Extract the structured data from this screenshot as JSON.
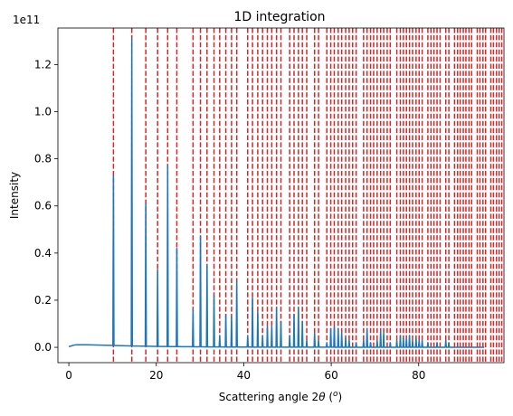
{
  "chart_data": {
    "type": "line",
    "title": "1D integration",
    "xlabel_prefix": "Scattering angle 2",
    "xlabel_theta": "θ",
    "xlabel_unit_open": " (",
    "xlabel_unit_deg": "o",
    "xlabel_unit_close": ")",
    "ylabel": "Intensity",
    "y_offset_text": "1e11",
    "xlim": [
      -2.5,
      99.5
    ],
    "ylim": [
      -0.065,
      1.355
    ],
    "x_ticks": [
      0,
      20,
      40,
      60,
      80
    ],
    "y_ticks": [
      0.0,
      0.2,
      0.4,
      0.6,
      0.8,
      1.0,
      1.2
    ],
    "y_tick_labels": [
      "0.0",
      "0.2",
      "0.4",
      "0.6",
      "0.8",
      "1.0",
      "1.2"
    ],
    "grid": false,
    "line_color": "#1f77b4",
    "reference_line_color": "#d62728",
    "reference_lines_x": [
      10.2,
      14.4,
      17.6,
      20.3,
      22.6,
      24.7,
      28.4,
      30.1,
      31.6,
      33.2,
      34.5,
      35.9,
      37.2,
      38.4,
      40.9,
      42.0,
      43.2,
      44.3,
      45.4,
      46.4,
      47.5,
      48.5,
      50.5,
      51.5,
      52.5,
      53.4,
      54.4,
      56.2,
      57.1,
      59.0,
      59.9,
      60.7,
      61.6,
      62.4,
      63.3,
      64.1,
      64.9,
      65.7,
      67.4,
      68.2,
      69.0,
      69.7,
      70.5,
      71.3,
      72.0,
      72.8,
      73.5,
      75.0,
      75.8,
      76.5,
      77.2,
      77.9,
      78.6,
      79.4,
      80.1,
      80.8,
      82.1,
      82.8,
      83.5,
      84.2,
      84.9,
      86.2,
      86.9,
      88.2,
      88.9,
      89.5,
      90.2,
      90.8,
      91.5,
      92.1,
      93.4,
      94.0,
      94.7,
      95.3,
      96.5,
      97.1,
      97.8,
      98.4,
      99.0
    ],
    "baseline": [
      [
        0,
        0.003
      ],
      [
        0.6,
        0.006
      ],
      [
        1.2,
        0.01
      ],
      [
        2.0,
        0.011
      ],
      [
        4,
        0.011
      ],
      [
        6,
        0.01
      ],
      [
        8,
        0.009
      ],
      [
        10,
        0.008
      ],
      [
        14,
        0.006
      ],
      [
        20,
        0.004
      ],
      [
        30,
        0.002
      ],
      [
        40,
        0.001
      ],
      [
        60,
        0.0005
      ],
      [
        80,
        0.0003
      ],
      [
        95,
        0.0002
      ]
    ],
    "peaks": [
      {
        "x": 10.2,
        "y": 0.73
      },
      {
        "x": 14.4,
        "y": 1.31
      },
      {
        "x": 17.6,
        "y": 0.61
      },
      {
        "x": 20.3,
        "y": 0.33
      },
      {
        "x": 22.6,
        "y": 0.77
      },
      {
        "x": 24.7,
        "y": 0.42
      },
      {
        "x": 28.4,
        "y": 0.16
      },
      {
        "x": 30.1,
        "y": 0.47
      },
      {
        "x": 31.6,
        "y": 0.35
      },
      {
        "x": 33.2,
        "y": 0.22
      },
      {
        "x": 34.5,
        "y": 0.05
      },
      {
        "x": 35.9,
        "y": 0.14
      },
      {
        "x": 37.2,
        "y": 0.13
      },
      {
        "x": 38.4,
        "y": 0.28
      },
      {
        "x": 40.9,
        "y": 0.05
      },
      {
        "x": 42.0,
        "y": 0.21
      },
      {
        "x": 43.2,
        "y": 0.15
      },
      {
        "x": 44.3,
        "y": 0.05
      },
      {
        "x": 45.4,
        "y": 0.09
      },
      {
        "x": 46.4,
        "y": 0.09
      },
      {
        "x": 47.5,
        "y": 0.17
      },
      {
        "x": 48.5,
        "y": 0.11
      },
      {
        "x": 50.5,
        "y": 0.05
      },
      {
        "x": 51.5,
        "y": 0.14
      },
      {
        "x": 52.5,
        "y": 0.17
      },
      {
        "x": 53.4,
        "y": 0.11
      },
      {
        "x": 54.4,
        "y": 0.03
      },
      {
        "x": 56.2,
        "y": 0.06
      },
      {
        "x": 57.1,
        "y": 0.03
      },
      {
        "x": 59.0,
        "y": 0.02
      },
      {
        "x": 59.9,
        "y": 0.08
      },
      {
        "x": 60.7,
        "y": 0.09
      },
      {
        "x": 61.6,
        "y": 0.08
      },
      {
        "x": 62.4,
        "y": 0.06
      },
      {
        "x": 63.3,
        "y": 0.04
      },
      {
        "x": 64.1,
        "y": 0.03
      },
      {
        "x": 65.7,
        "y": 0.02
      },
      {
        "x": 67.4,
        "y": 0.03
      },
      {
        "x": 68.2,
        "y": 0.08
      },
      {
        "x": 69.0,
        "y": 0.02
      },
      {
        "x": 70.5,
        "y": 0.03
      },
      {
        "x": 71.3,
        "y": 0.07
      },
      {
        "x": 72.0,
        "y": 0.06
      },
      {
        "x": 73.5,
        "y": 0.02
      },
      {
        "x": 75.0,
        "y": 0.03
      },
      {
        "x": 75.8,
        "y": 0.05
      },
      {
        "x": 76.5,
        "y": 0.04
      },
      {
        "x": 77.2,
        "y": 0.04
      },
      {
        "x": 77.9,
        "y": 0.05
      },
      {
        "x": 78.6,
        "y": 0.03
      },
      {
        "x": 79.4,
        "y": 0.04
      },
      {
        "x": 80.1,
        "y": 0.03
      },
      {
        "x": 80.8,
        "y": 0.03
      },
      {
        "x": 82.1,
        "y": 0.02
      },
      {
        "x": 84.2,
        "y": 0.02
      },
      {
        "x": 86.2,
        "y": 0.03
      },
      {
        "x": 86.9,
        "y": 0.02
      }
    ]
  }
}
